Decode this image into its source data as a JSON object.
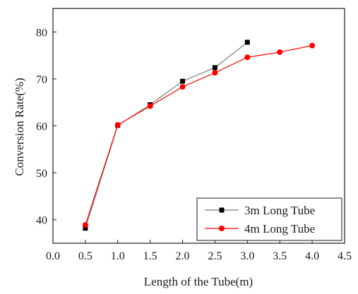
{
  "chart_data": {
    "type": "line",
    "xlabel": "Length of the Tube(m)",
    "ylabel": "Conversion Rate(%)",
    "xlim": [
      0.0,
      4.5
    ],
    "ylim": [
      35,
      85
    ],
    "x_ticks": [
      "0.0",
      "0.5",
      "1.0",
      "1.5",
      "2.0",
      "2.5",
      "3.0",
      "3.5",
      "4.0",
      "4.5"
    ],
    "y_ticks": [
      "40",
      "50",
      "60",
      "70",
      "80"
    ],
    "grid": false,
    "legend_position": "bottom-right",
    "series": [
      {
        "name": "3m Long Tube",
        "color": "#000000",
        "line_color": "#7a7a7a",
        "marker": "square",
        "x": [
          0.5,
          1.0,
          1.5,
          2.0,
          2.5,
          3.0
        ],
        "y": [
          38.2,
          60.1,
          64.5,
          69.5,
          72.4,
          77.8
        ]
      },
      {
        "name": "4m Long Tube",
        "color": "#ff0000",
        "line_color": "#ff0000",
        "marker": "circle",
        "x": [
          0.5,
          1.0,
          1.5,
          2.0,
          2.5,
          3.0,
          3.5,
          4.0
        ],
        "y": [
          38.9,
          60.2,
          64.2,
          68.3,
          71.3,
          74.6,
          75.7,
          77.1
        ]
      }
    ]
  }
}
